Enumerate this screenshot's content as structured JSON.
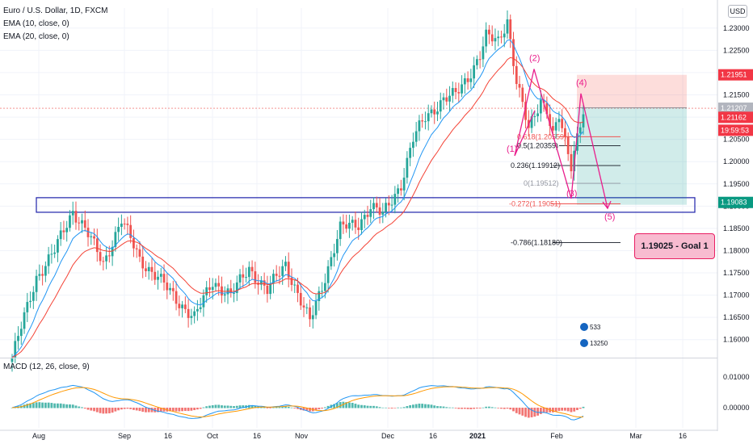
{
  "header": {
    "symbol": "Euro / U.S. Dollar, 1D, FXCM",
    "ema10": "EMA (10, close, 0)",
    "ema20": "EMA (20, close, 0)",
    "macd": "MACD (12, 26, close, 9)",
    "currency": "USD"
  },
  "chart_data": {
    "type": "candlestick",
    "instrument": "EUR/USD",
    "timeframe": "1D",
    "ylim": [
      1.1565,
      1.2345
    ],
    "y_ticks": [
      "1.23000",
      "1.22500",
      "1.22000",
      "1.21500",
      "1.21000",
      "1.20500",
      "1.20000",
      "1.19500",
      "1.19000",
      "1.18500",
      "1.18000",
      "1.17500",
      "1.17000",
      "1.16500",
      "1.16000"
    ],
    "x_ticks": [
      "Aug",
      "Sep",
      "16",
      "Oct",
      "16",
      "Nov",
      "Dec",
      "16",
      "2021",
      "Feb",
      "Mar",
      "16"
    ],
    "macd_ticks": [
      "0.01000",
      "0.00000"
    ],
    "price_labels": {
      "stop": "1.21951",
      "last": "1.21207",
      "ema": "1.21162",
      "countdown": "19:59:53",
      "support": "1.19083"
    },
    "fib_levels": [
      {
        "label": "0.618(1.20559)",
        "value": 1.20559
      },
      {
        "label": "0.5(1.20359)",
        "value": 1.20359
      },
      {
        "label": "0.236(1.19912)",
        "value": 1.19912
      },
      {
        "label": "0(1.19512)",
        "value": 1.19512
      },
      {
        "label": "-0.272(1.19051)",
        "value": 1.19051
      },
      {
        "label": "-0.786(1.18180)",
        "value": 1.1818
      }
    ],
    "waves": [
      {
        "label": "(1)",
        "value": 1.2013
      },
      {
        "label": "(2)",
        "value": 1.2208
      },
      {
        "label": "(3)",
        "value": 1.1917
      },
      {
        "label": "(4)",
        "value": 1.2153
      },
      {
        "label": "(5)",
        "value": 1.1895
      }
    ],
    "support_zone": [
      1.19025,
      1.19135
    ],
    "target": "1.19025 - Goal 1",
    "badges": [
      "533",
      "13250"
    ],
    "colors": {
      "up": "#26a69a",
      "down": "#ef5350",
      "ema10": "#2196f3",
      "ema20": "#f44336",
      "signal": "#ff9800",
      "wave": "#e91e8c",
      "zone": "#1e22aa"
    }
  }
}
